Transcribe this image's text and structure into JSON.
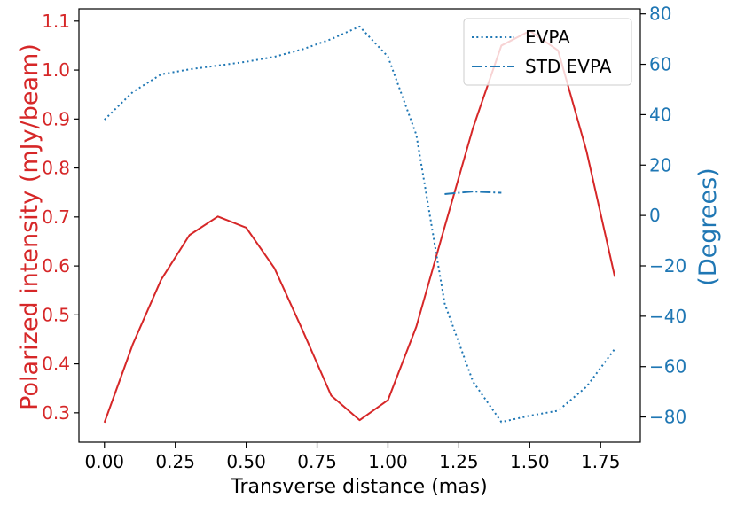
{
  "chart_data": {
    "type": "line",
    "xlabel": "Transverse distance (mas)",
    "ylabel_left": "Polarized intensity (mJy/beam)",
    "ylabel_right": "(Degrees)",
    "xlim": [
      -0.09,
      1.89
    ],
    "ylim_left": [
      0.24,
      1.125
    ],
    "ylim_right": [
      -90,
      82
    ],
    "x_ticks": [
      0.0,
      0.25,
      0.5,
      0.75,
      1.0,
      1.25,
      1.5,
      1.75
    ],
    "x_tick_labels": [
      "0.00",
      "0.25",
      "0.50",
      "0.75",
      "1.00",
      "1.25",
      "1.50",
      "1.75"
    ],
    "y_left_ticks": [
      0.3,
      0.4,
      0.5,
      0.6,
      0.7,
      0.8,
      0.9,
      1.0,
      1.1
    ],
    "y_left_tick_labels": [
      "0.3",
      "0.4",
      "0.5",
      "0.6",
      "0.7",
      "0.8",
      "0.9",
      "1.0",
      "1.1"
    ],
    "y_right_ticks": [
      -80,
      -60,
      -40,
      -20,
      0,
      20,
      40,
      60,
      80
    ],
    "y_right_tick_labels": [
      "−80",
      "−60",
      "−40",
      "−20",
      "0",
      "20",
      "40",
      "60",
      "80"
    ],
    "grid": false,
    "legend": {
      "placement": "top-right"
    },
    "colors": {
      "intensity": "#d62728",
      "evpa": "#1f77b4"
    },
    "series": [
      {
        "axis": "left",
        "style": "solid",
        "x": [
          0.0,
          0.1,
          0.2,
          0.3,
          0.4,
          0.5,
          0.6,
          0.7,
          0.8,
          0.9,
          1.0,
          1.1,
          1.2,
          1.3,
          1.4,
          1.5,
          1.6,
          1.7,
          1.8
        ],
        "values": [
          0.28,
          0.44,
          0.572,
          0.663,
          0.701,
          0.678,
          0.595,
          0.467,
          0.335,
          0.285,
          0.326,
          0.476,
          0.68,
          0.882,
          1.05,
          1.08,
          1.04,
          0.835,
          0.578
        ]
      },
      {
        "name": "EVPA",
        "axis": "right",
        "style": "dotted",
        "x": [
          0.0,
          0.1,
          0.2,
          0.3,
          0.4,
          0.5,
          0.6,
          0.7,
          0.8,
          0.9,
          1.0,
          1.1,
          1.2,
          1.3,
          1.4,
          1.5,
          1.6,
          1.7,
          1.8
        ],
        "values": [
          38,
          49,
          56,
          58,
          59.5,
          61,
          63,
          66,
          70,
          75,
          63,
          32,
          -35,
          -66,
          -82,
          -79.5,
          -77.5,
          -68,
          -53
        ]
      },
      {
        "name": "STD EVPA",
        "axis": "right",
        "style": "dashdot",
        "x": [
          1.2,
          1.3,
          1.4
        ],
        "values": [
          8.5,
          9.5,
          9.0
        ]
      }
    ]
  }
}
